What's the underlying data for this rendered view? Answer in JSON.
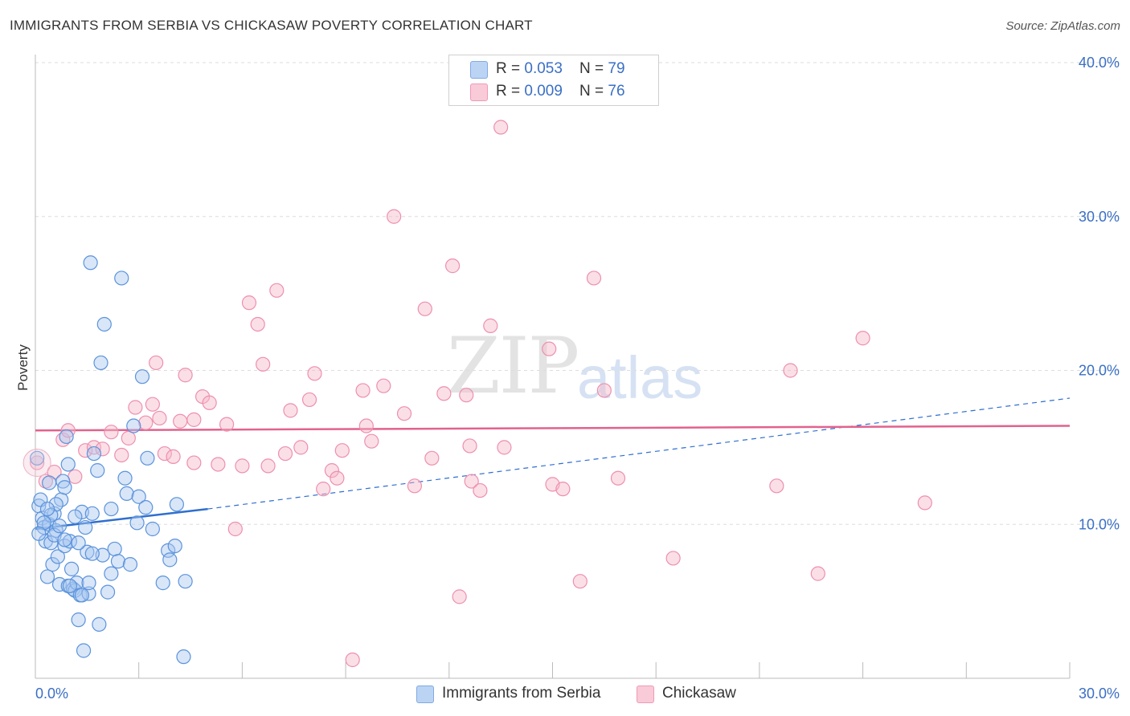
{
  "header": {
    "title": "IMMIGRANTS FROM SERBIA VS CHICKASAW POVERTY CORRELATION CHART",
    "source": "Source: ZipAtlas.com"
  },
  "watermark": {
    "zip": "ZIP",
    "atlas": "atlas"
  },
  "legend": {
    "rows": [
      {
        "r_label": "R = ",
        "r_value": "0.053",
        "n_label": "N = ",
        "n_value": "79",
        "color": "#a9c8f0"
      },
      {
        "r_label": "R = ",
        "r_value": "0.009",
        "n_label": "N = ",
        "n_value": "76",
        "color": "#f6b8ca"
      }
    ]
  },
  "bottom_legend": {
    "serbia": "Immigrants from Serbia",
    "chickasaw": "Chickasaw"
  },
  "chart_data": {
    "type": "scatter",
    "title": "IMMIGRANTS FROM SERBIA VS CHICKASAW POVERTY CORRELATION CHART",
    "xlabel": "",
    "ylabel": "Poverty",
    "xlim": [
      0,
      30
    ],
    "ylim": [
      0,
      40
    ],
    "x_tick_labels": [
      "0.0%",
      "30.0%"
    ],
    "y_ticks": [
      10,
      20,
      30,
      40
    ],
    "y_tick_labels": [
      "10.0%",
      "20.0%",
      "30.0%",
      "40.0%"
    ],
    "grid": true,
    "colors": {
      "serbia": "#5b93dc",
      "chickasaw": "#ee8fae",
      "serbia_line": "#2f6fce",
      "chickasaw_line": "#e2628d"
    },
    "series": [
      {
        "name": "Immigrants from Serbia",
        "trend": {
          "x0": 0,
          "y0": 9.7,
          "x1": 5.0,
          "y1": 11.0,
          "dashed_to_x": 30,
          "dashed_to_y": 18.2
        },
        "points": [
          [
            0.05,
            14.3
          ],
          [
            0.1,
            11.2
          ],
          [
            0.15,
            11.6
          ],
          [
            0.2,
            10.4
          ],
          [
            0.25,
            9.8
          ],
          [
            0.3,
            8.9
          ],
          [
            0.35,
            6.6
          ],
          [
            0.4,
            10.0
          ],
          [
            0.45,
            8.8
          ],
          [
            0.5,
            7.4
          ],
          [
            0.55,
            10.7
          ],
          [
            0.6,
            9.6
          ],
          [
            0.65,
            7.9
          ],
          [
            0.7,
            6.1
          ],
          [
            0.75,
            11.6
          ],
          [
            0.8,
            12.8
          ],
          [
            0.85,
            8.6
          ],
          [
            0.9,
            15.7
          ],
          [
            0.95,
            6.0
          ],
          [
            1.0,
            8.9
          ],
          [
            1.05,
            7.1
          ],
          [
            1.1,
            5.8
          ],
          [
            1.15,
            5.7
          ],
          [
            1.2,
            6.2
          ],
          [
            1.25,
            3.8
          ],
          [
            1.3,
            5.4
          ],
          [
            1.35,
            10.8
          ],
          [
            1.4,
            1.8
          ],
          [
            1.45,
            9.8
          ],
          [
            1.5,
            8.2
          ],
          [
            1.55,
            5.5
          ],
          [
            1.6,
            27.0
          ],
          [
            1.65,
            10.7
          ],
          [
            1.7,
            14.6
          ],
          [
            1.8,
            13.5
          ],
          [
            1.85,
            3.5
          ],
          [
            1.9,
            20.5
          ],
          [
            1.95,
            8.0
          ],
          [
            2.1,
            5.6
          ],
          [
            2.2,
            11.0
          ],
          [
            2.3,
            8.4
          ],
          [
            2.4,
            7.6
          ],
          [
            2.5,
            26.0
          ],
          [
            2.65,
            12.0
          ],
          [
            2.75,
            7.4
          ],
          [
            2.85,
            16.4
          ],
          [
            2.95,
            10.1
          ],
          [
            3.0,
            11.8
          ],
          [
            3.1,
            19.6
          ],
          [
            3.2,
            11.1
          ],
          [
            3.25,
            14.3
          ],
          [
            3.4,
            9.7
          ],
          [
            2.0,
            23.0
          ],
          [
            0.95,
            13.9
          ],
          [
            1.25,
            8.8
          ],
          [
            0.55,
            9.3
          ],
          [
            0.85,
            12.4
          ],
          [
            1.55,
            6.2
          ],
          [
            0.6,
            11.3
          ],
          [
            0.45,
            10.6
          ],
          [
            1.15,
            10.5
          ],
          [
            0.7,
            9.9
          ],
          [
            1.0,
            6.0
          ],
          [
            0.4,
            12.7
          ],
          [
            1.35,
            5.4
          ],
          [
            0.85,
            9.0
          ],
          [
            0.25,
            10.1
          ],
          [
            1.65,
            8.1
          ],
          [
            3.7,
            6.2
          ],
          [
            3.85,
            8.3
          ],
          [
            3.9,
            7.7
          ],
          [
            4.3,
            1.4
          ],
          [
            4.35,
            6.3
          ],
          [
            4.1,
            11.3
          ],
          [
            4.05,
            8.6
          ],
          [
            2.6,
            13.0
          ],
          [
            2.2,
            6.8
          ],
          [
            0.35,
            11.0
          ],
          [
            0.1,
            9.4
          ]
        ]
      },
      {
        "name": "Chickasaw",
        "trend": {
          "x0": 0,
          "y0": 16.1,
          "x1": 30,
          "y1": 16.4
        },
        "points": [
          [
            0.05,
            14.0
          ],
          [
            0.3,
            12.8
          ],
          [
            0.55,
            13.4
          ],
          [
            0.8,
            15.5
          ],
          [
            0.95,
            16.1
          ],
          [
            1.15,
            13.1
          ],
          [
            1.45,
            14.8
          ],
          [
            1.7,
            15.0
          ],
          [
            1.95,
            14.9
          ],
          [
            2.2,
            16.0
          ],
          [
            2.5,
            14.5
          ],
          [
            2.7,
            15.6
          ],
          [
            2.9,
            17.6
          ],
          [
            3.2,
            16.6
          ],
          [
            3.4,
            17.8
          ],
          [
            3.5,
            20.5
          ],
          [
            3.6,
            16.9
          ],
          [
            3.75,
            14.6
          ],
          [
            4.0,
            14.4
          ],
          [
            4.2,
            16.7
          ],
          [
            4.35,
            19.7
          ],
          [
            4.6,
            14.0
          ],
          [
            4.85,
            18.3
          ],
          [
            5.05,
            17.9
          ],
          [
            5.3,
            13.9
          ],
          [
            5.55,
            16.5
          ],
          [
            5.8,
            9.7
          ],
          [
            6.0,
            13.8
          ],
          [
            6.2,
            24.4
          ],
          [
            6.45,
            23.0
          ],
          [
            6.6,
            20.4
          ],
          [
            6.75,
            13.8
          ],
          [
            7.0,
            25.2
          ],
          [
            7.25,
            14.6
          ],
          [
            7.4,
            17.4
          ],
          [
            7.7,
            15.0
          ],
          [
            7.95,
            18.1
          ],
          [
            8.1,
            19.8
          ],
          [
            8.35,
            12.3
          ],
          [
            8.6,
            13.5
          ],
          [
            8.75,
            13.0
          ],
          [
            8.9,
            14.8
          ],
          [
            9.2,
            1.2
          ],
          [
            9.5,
            18.7
          ],
          [
            9.6,
            16.4
          ],
          [
            9.75,
            15.4
          ],
          [
            10.1,
            19.0
          ],
          [
            10.4,
            30.0
          ],
          [
            10.7,
            17.2
          ],
          [
            11.0,
            12.5
          ],
          [
            11.3,
            24.0
          ],
          [
            11.5,
            14.3
          ],
          [
            11.85,
            18.5
          ],
          [
            12.1,
            26.8
          ],
          [
            12.3,
            5.3
          ],
          [
            12.5,
            18.4
          ],
          [
            12.65,
            12.8
          ],
          [
            12.9,
            12.2
          ],
          [
            13.2,
            22.9
          ],
          [
            13.5,
            35.8
          ],
          [
            13.6,
            15.0
          ],
          [
            14.9,
            21.4
          ],
          [
            15.0,
            12.6
          ],
          [
            15.3,
            12.3
          ],
          [
            15.8,
            6.3
          ],
          [
            16.2,
            26.0
          ],
          [
            16.5,
            18.7
          ],
          [
            16.9,
            13.0
          ],
          [
            18.5,
            7.8
          ],
          [
            21.5,
            12.5
          ],
          [
            21.9,
            20.0
          ],
          [
            22.7,
            6.8
          ],
          [
            24.0,
            22.1
          ],
          [
            25.8,
            11.4
          ],
          [
            12.6,
            15.1
          ],
          [
            4.6,
            16.8
          ]
        ]
      }
    ]
  }
}
